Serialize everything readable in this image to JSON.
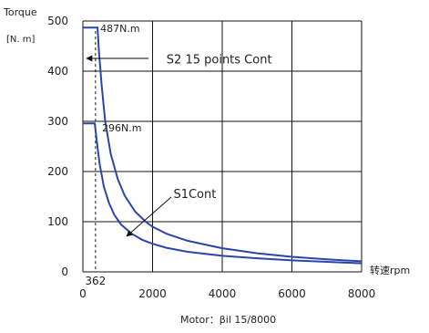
{
  "chart_data": {
    "type": "line",
    "title": "",
    "ylabel": "Torque",
    "yunit": "[N. m]",
    "xlabel": "转速rpm",
    "caption": "Motor：βil 15/8000",
    "xlim": [
      0,
      8000
    ],
    "ylim": [
      0,
      500
    ],
    "xticks": [
      0,
      2000,
      4000,
      6000,
      8000
    ],
    "yticks": [
      0,
      100,
      200,
      300,
      400,
      500
    ],
    "grid": true,
    "series": [
      {
        "name": "S2 15 points Cont",
        "color": "#2b46a8",
        "x": [
          0,
          420,
          460,
          540,
          640,
          800,
          1000,
          1200,
          1500,
          1800,
          2000,
          2400,
          3000,
          4000,
          5000,
          6000,
          7000,
          8000
        ],
        "y": [
          487,
          487,
          440,
          370,
          300,
          235,
          185,
          152,
          120,
          100,
          90,
          76,
          62,
          47,
          37,
          30,
          25,
          21
        ]
      },
      {
        "name": "S1Cont",
        "color": "#2b46a8",
        "x": [
          0,
          340,
          400,
          480,
          600,
          750,
          900,
          1100,
          1400,
          1700,
          2000,
          2400,
          3000,
          4000,
          5000,
          6000,
          7000,
          8000
        ],
        "y": [
          296,
          296,
          260,
          215,
          170,
          137,
          114,
          94,
          76,
          64,
          56,
          48,
          40,
          32,
          27,
          23,
          20,
          17
        ]
      }
    ],
    "annotations": [
      {
        "text": "487N.m",
        "x": 500,
        "y": 487
      },
      {
        "text": "296N.m",
        "x": 550,
        "y": 296
      },
      {
        "text": "S2 15 points Cont",
        "x": 2400,
        "y": 423
      },
      {
        "text": "S1Cont",
        "x": 2600,
        "y": 155
      },
      {
        "text": "362",
        "x": 362,
        "y": 0
      }
    ],
    "marker_x": 362
  }
}
